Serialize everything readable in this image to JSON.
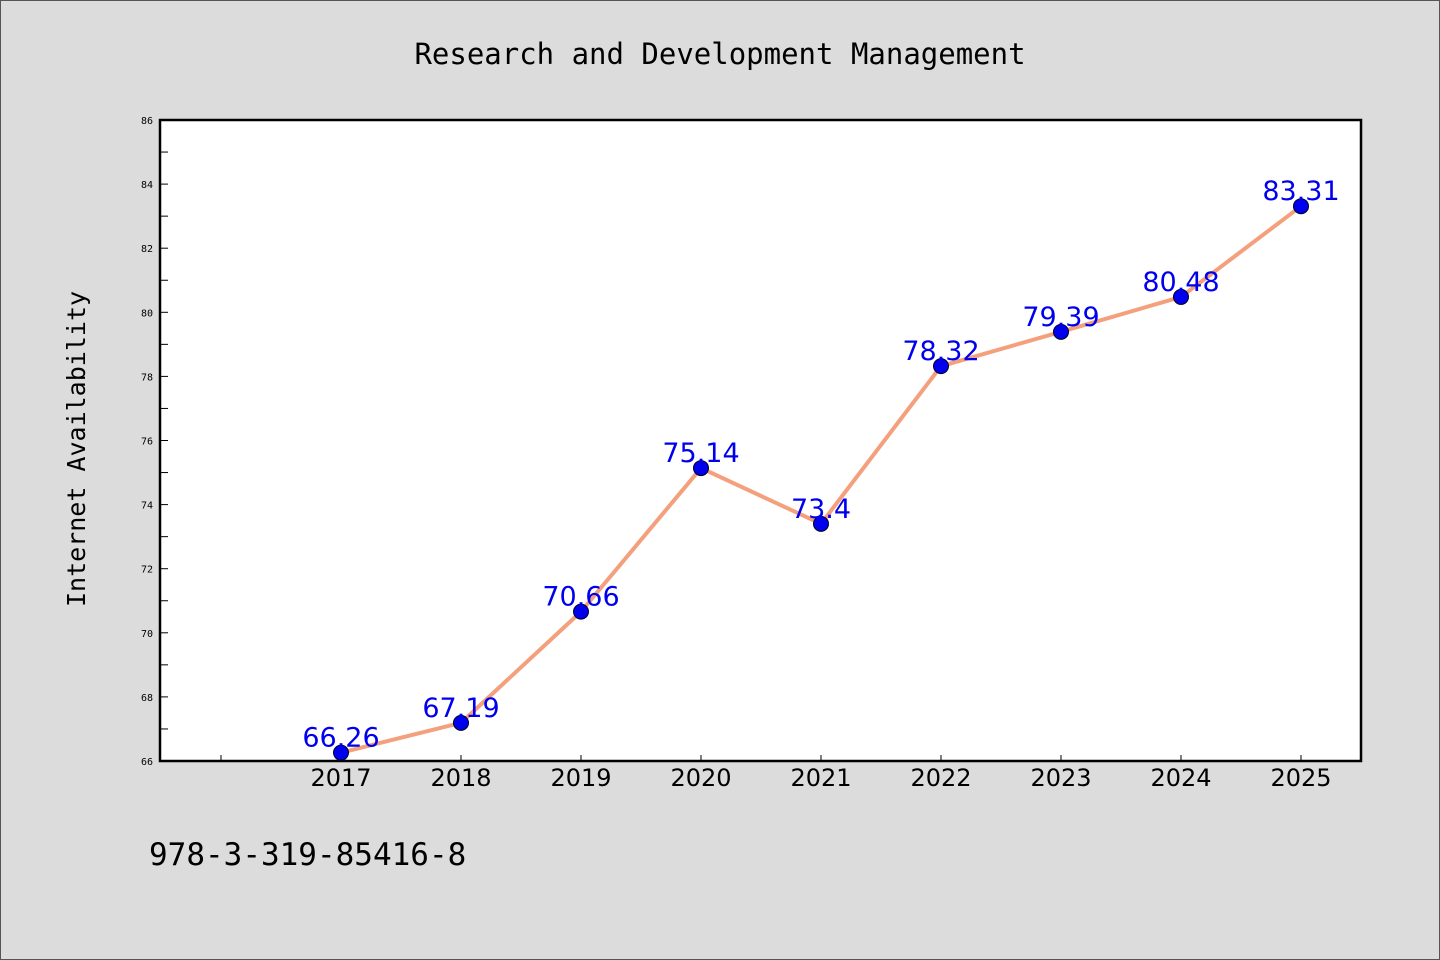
{
  "chart_data": {
    "type": "line",
    "title": "Research and Development Management",
    "xlabel": "",
    "ylabel": "Internet Availability",
    "categories": [
      "2017",
      "2018",
      "2019",
      "2020",
      "2021",
      "2022",
      "2023",
      "2024",
      "2025"
    ],
    "series": [
      {
        "values": [
          66.26,
          67.19,
          70.66,
          75.14,
          73.4,
          78.32,
          79.39,
          80.48,
          83.31
        ],
        "labels": [
          "66.26",
          "67.19",
          "70.66",
          "75.14",
          "73.4",
          "78.32",
          "79.39",
          "80.48",
          "83.31"
        ],
        "line_color": "#f4a07d",
        "marker_color": "#0000ee",
        "label_color": "#0000ee"
      }
    ],
    "ylim": [
      66,
      86
    ],
    "yticks": [
      "66",
      "68",
      "70",
      "72",
      "74",
      "76",
      "78",
      "80",
      "82",
      "84",
      "86"
    ],
    "grid": false,
    "legend": "none"
  },
  "footnote": "978-3-319-85416-8",
  "colors": {
    "background": "#dcdcdc",
    "plot_background": "#ffffff"
  }
}
